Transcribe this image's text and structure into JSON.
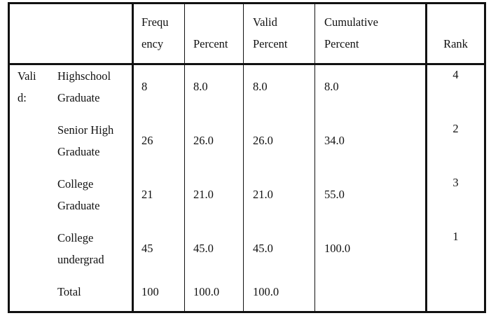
{
  "table": {
    "headers": {
      "frequency_line1": "Frequ",
      "frequency_line2": "ency",
      "percent": "Percent",
      "valid_percent_line1": "Valid",
      "valid_percent_line2": "Percent",
      "cumulative_line1": "Cumulative",
      "cumulative_line2": "Percent",
      "rank": "Rank"
    },
    "group_label_line1": "Vali",
    "group_label_line2": "d:",
    "rows": [
      {
        "label1": "Highschool",
        "label2": "Graduate",
        "frequency": "8",
        "percent": "8.0",
        "valid_percent": "8.0",
        "cumulative": "8.0",
        "rank": "4"
      },
      {
        "label1": "Senior  High",
        "label2": "Graduate",
        "frequency": "26",
        "percent": "26.0",
        "valid_percent": "26.0",
        "cumulative": "34.0",
        "rank": "2"
      },
      {
        "label1": "College",
        "label2": "Graduate",
        "frequency": "21",
        "percent": "21.0",
        "valid_percent": "21.0",
        "cumulative": "55.0",
        "rank": "3"
      },
      {
        "label1": "College",
        "label2": "undergrad",
        "frequency": "45",
        "percent": "45.0",
        "valid_percent": "45.0",
        "cumulative": "100.0",
        "rank": "1"
      },
      {
        "label1": "Total",
        "label2": "",
        "frequency": "100",
        "percent": "100.0",
        "valid_percent": "100.0",
        "cumulative": "",
        "rank": ""
      }
    ]
  }
}
